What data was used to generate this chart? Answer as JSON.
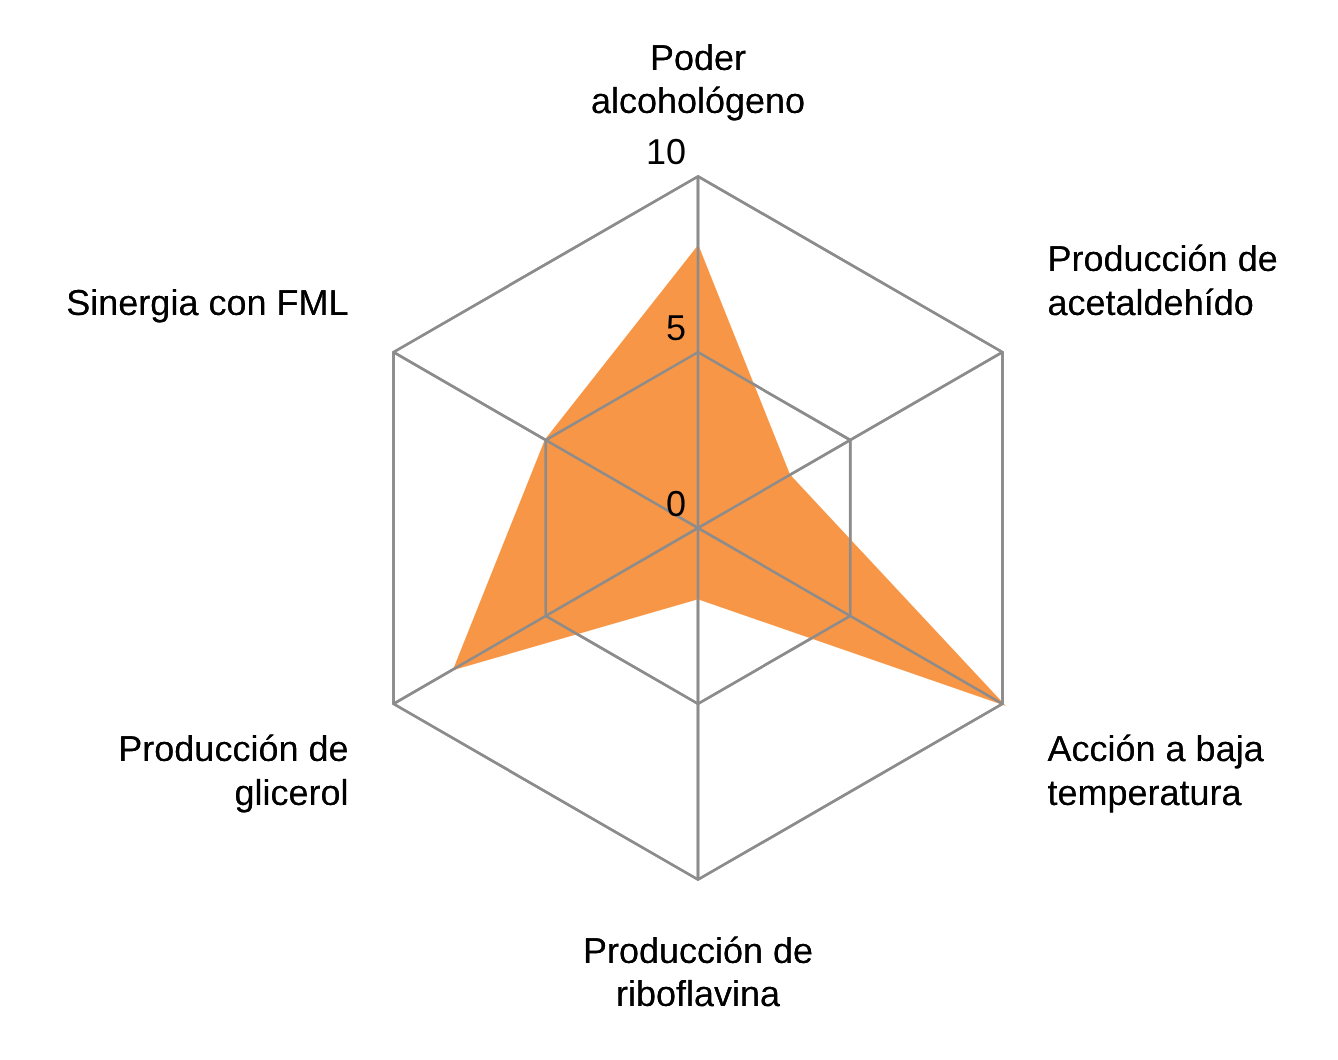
{
  "chart_data": {
    "type": "radar",
    "categories": [
      "Poder alcohológeno",
      "Producción de acetaldehído",
      "Acción a baja temperatura",
      "Producción de riboflavina",
      "Producción de glicerol",
      "Sinergia con FML"
    ],
    "series": [
      {
        "color": "#f79646",
        "values": [
          8,
          3,
          10,
          2,
          8,
          5
        ]
      }
    ],
    "ylim": [
      0,
      10
    ],
    "yticks": [
      0,
      5,
      10
    ],
    "grid": true,
    "legend": false
  }
}
